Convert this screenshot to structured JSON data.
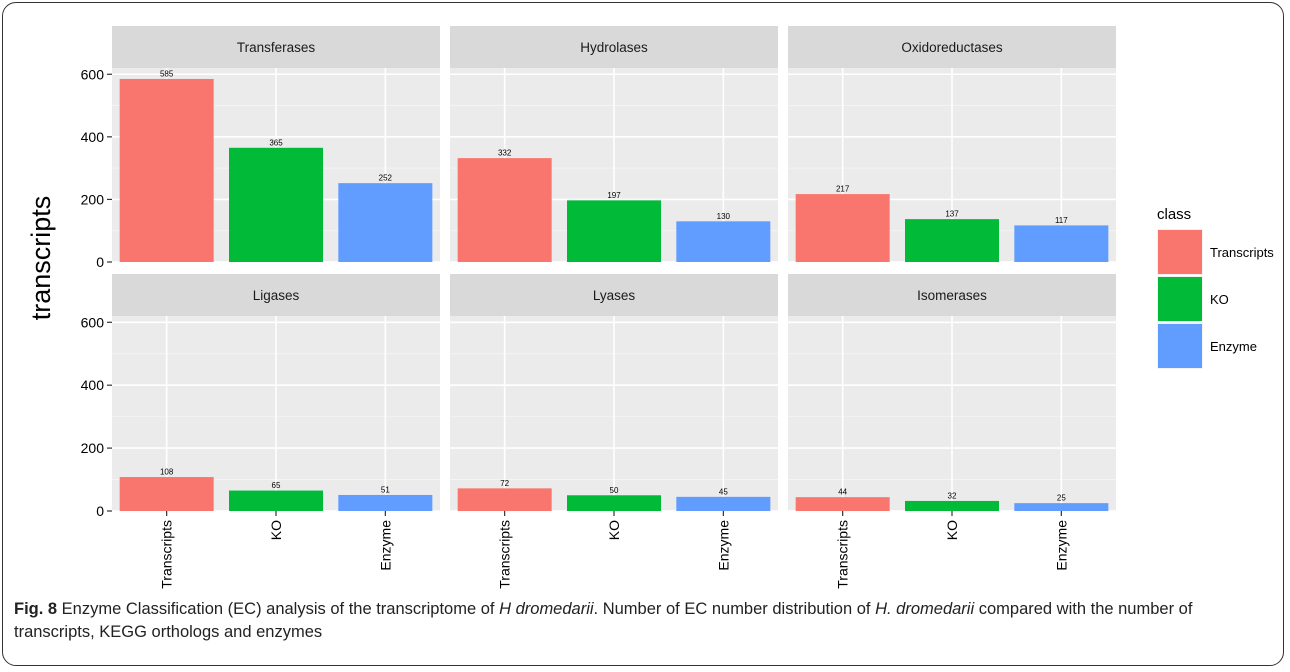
{
  "chart_data": {
    "type": "bar",
    "facets": [
      "Transferases",
      "Hydrolases",
      "Oxidoreductases",
      "Ligases",
      "Lyases",
      "Isomerases"
    ],
    "categories": [
      "Transcripts",
      "KO",
      "Enzyme"
    ],
    "values": [
      [
        585,
        365,
        252
      ],
      [
        332,
        197,
        130
      ],
      [
        217,
        137,
        117
      ],
      [
        108,
        65,
        51
      ],
      [
        72,
        50,
        45
      ],
      [
        44,
        32,
        25
      ]
    ],
    "data_labels": [
      [
        "585",
        "365",
        "252"
      ],
      [
        "332",
        "197",
        "130"
      ],
      [
        "217",
        "137",
        "117"
      ],
      [
        "108",
        "65",
        "51"
      ],
      [
        "72",
        "50",
        "45"
      ],
      [
        "44",
        "32",
        "25"
      ]
    ],
    "ylabel": "transcripts",
    "xlabel": "",
    "ylim": [
      0,
      620
    ],
    "yticks": [
      0,
      200,
      400,
      600
    ],
    "ytick_labels": [
      "0",
      "200",
      "400",
      "600"
    ],
    "legend": {
      "title": "class",
      "entries": [
        "Transcripts",
        "KO",
        "Enzyme"
      ],
      "position": "right"
    },
    "colors": {
      "Transcripts": "#F8766D",
      "KO": "#00BA38",
      "Enzyme": "#619CFF"
    },
    "panel_bg": "#EBEBEB",
    "strip_bg": "#D9D9D9",
    "grid": true
  },
  "caption": {
    "fig_label": "Fig. 8",
    "part1": " Enzyme Classification (EC) analysis of the transcriptome of ",
    "species1": "H dromedarii",
    "part2": ". Number of EC number distribution of ",
    "species2": "H. dromedarii",
    "part3": " compared with the number of transcripts, KEGG orthologs and enzymes"
  }
}
